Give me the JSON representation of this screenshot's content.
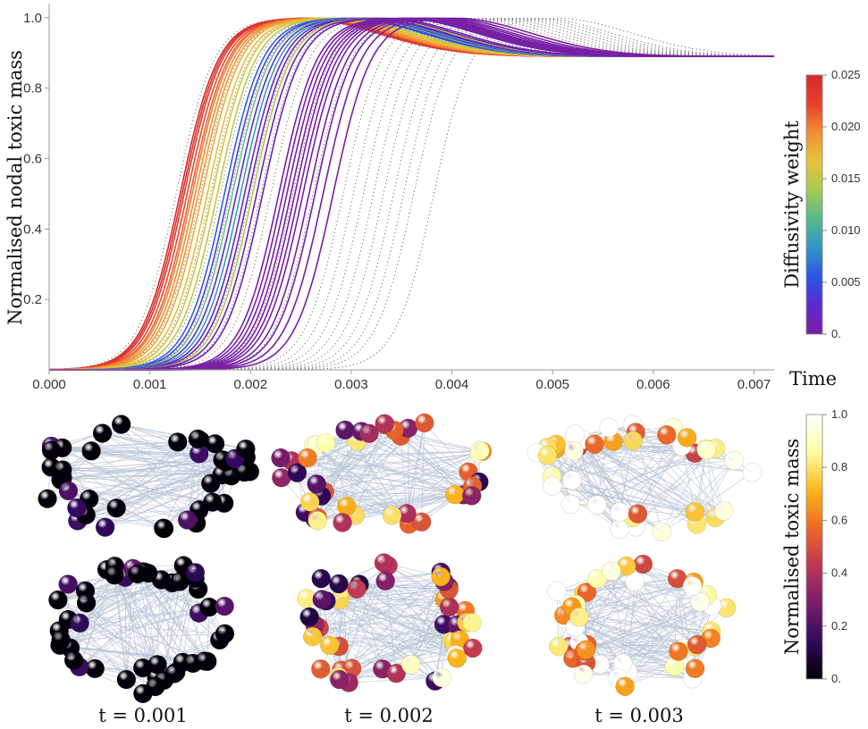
{
  "chart_data": [
    {
      "type": "line",
      "title": "",
      "xlabel": "Time",
      "ylabel": "Normalised nodal toxic mass",
      "xlim": [
        0,
        0.0072
      ],
      "ylim": [
        0,
        1.04
      ],
      "x_ticks": [
        "0.000",
        "0.001",
        "0.002",
        "0.003",
        "0.004",
        "0.005",
        "0.006",
        "0.007"
      ],
      "y_ticks": [
        "0.2",
        "0.4",
        "0.6",
        "0.8",
        "1.0"
      ],
      "grid": false,
      "steady_state_value": 0.89,
      "colorbar": {
        "label": "Diffusivity weight",
        "ticks": [
          "0.",
          "0.005",
          "0.010",
          "0.015",
          "0.020",
          "0.025"
        ],
        "range": [
          0,
          0.025
        ],
        "colors": [
          "#7a1fa2",
          "#5b2bd0",
          "#2d55e6",
          "#2f96c6",
          "#56b98d",
          "#a9c954",
          "#e6c43a",
          "#f08f32",
          "#e6402d",
          "#d42a2a"
        ]
      },
      "series_solid": {
        "style": "solid",
        "description_of_range": "half-max times of colored node curves",
        "half_times": [
          0.00128,
          0.0013,
          0.00132,
          0.00135,
          0.00138,
          0.0014,
          0.00143,
          0.00146,
          0.0015,
          0.00155,
          0.0016,
          0.00165,
          0.00172,
          0.00176,
          0.0018,
          0.00184,
          0.00188,
          0.00192,
          0.00196,
          0.002,
          0.00204,
          0.0021,
          0.00226,
          0.0023,
          0.00234,
          0.00238,
          0.00242,
          0.00246,
          0.0025,
          0.00256,
          0.00262,
          0.0027,
          0.0028
        ],
        "weights": [
          0.025,
          0.024,
          0.023,
          0.022,
          0.021,
          0.02,
          0.0195,
          0.019,
          0.018,
          0.017,
          0.016,
          0.015,
          0.006,
          0.004,
          0.012,
          0.003,
          0.009,
          0.002,
          0.001,
          0.014,
          0.0005,
          0.001,
          0.0004,
          0.0003,
          0.0002,
          0.0001,
          0.0,
          0.0004,
          0.0002,
          0.0001,
          0.0003,
          0.0,
          0.0
        ]
      },
      "series_dotted": {
        "style": "dotted",
        "color": "#777777",
        "half_times": [
          0.00124,
          0.00132,
          0.0014,
          0.00148,
          0.00158,
          0.00168,
          0.00178,
          0.00188,
          0.00198,
          0.00208,
          0.00218,
          0.0023,
          0.0024,
          0.0025,
          0.0026,
          0.0027,
          0.0028,
          0.0029,
          0.003,
          0.0031,
          0.0032,
          0.0033,
          0.0034,
          0.0035,
          0.0036,
          0.0038
        ]
      }
    },
    {
      "type": "heatmap",
      "title": "",
      "panel_labels": [
        "t = 0.001",
        "t = 0.002",
        "t = 0.003"
      ],
      "colorbar": {
        "label": "Normalised toxic mass",
        "ticks": [
          "0.",
          "0.2",
          "0.4",
          "0.6",
          "0.8",
          "1.0"
        ],
        "range": [
          0,
          1
        ],
        "colors": [
          "#000004",
          "#320a5e",
          "#781c6d",
          "#bc3754",
          "#ed6925",
          "#fbb61a",
          "#fcffa4",
          "#ffffff"
        ]
      },
      "mean_node_value": [
        0.06,
        0.52,
        0.9
      ]
    }
  ]
}
